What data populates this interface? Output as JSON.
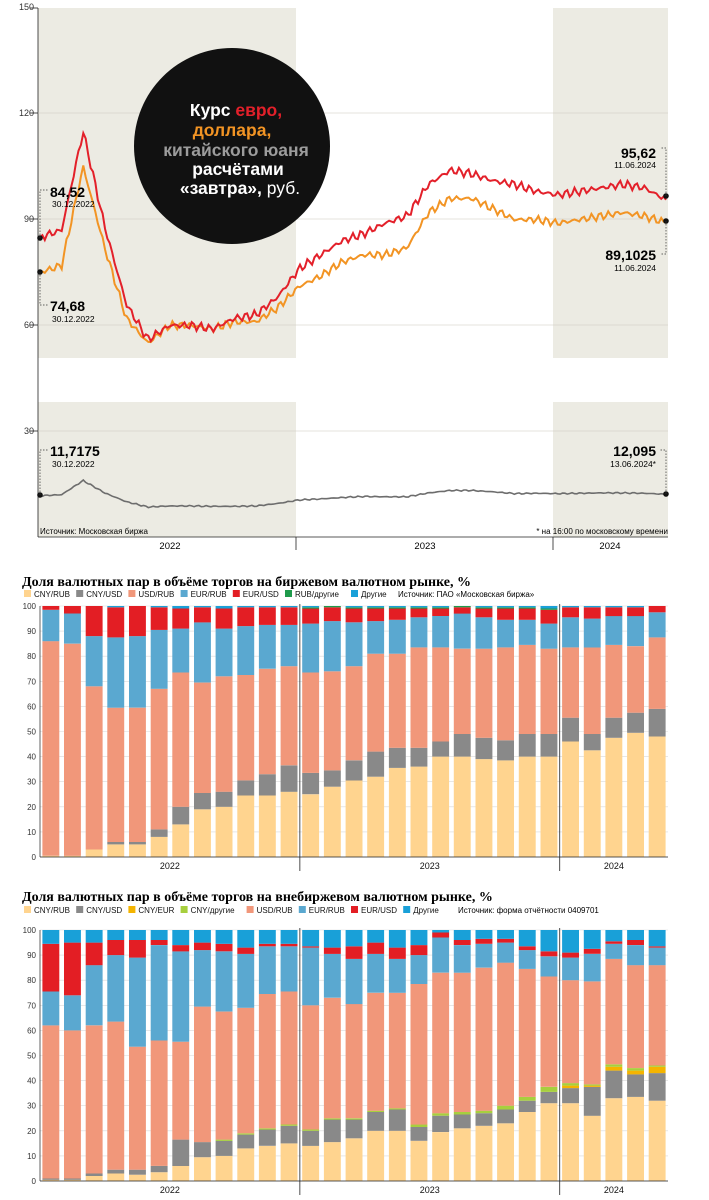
{
  "rate_chart": {
    "title": {
      "w1": "Курс ",
      "w2": "евро,",
      "w3": "доллара,",
      "w4": "китайского юаня",
      "w5": "расчётами",
      "w6": "«завтра»,",
      "w7": " руб."
    },
    "source": "Источник: Московская биржа",
    "footnote": "* на 16:00 по московскому времени",
    "years": [
      "2022",
      "2023",
      "2024"
    ],
    "annotations": {
      "eur_start_value": "84,52",
      "eur_start_date": "30.12.2022",
      "usd_start_value": "74,68",
      "usd_start_date": "30.12.2022",
      "eur_end_value": "95,62",
      "eur_end_date": "11.06.2024",
      "usd_end_value": "89,1025",
      "usd_end_date": "11.06.2024",
      "cny_start_value": "11,7175",
      "cny_start_date": "30.12.2022",
      "cny_end_value": "12,095",
      "cny_end_date": "13.06.2024*"
    },
    "colors": {
      "eur": "#e3202a",
      "usd": "#f29424",
      "cny": "#6d6d6d",
      "shade": "#ecebe3"
    }
  },
  "chart_data": [
    {
      "type": "line",
      "title": "Курс евро, доллара, китайского юаня расчётами «завтра», руб.",
      "ylim": [
        0,
        150
      ],
      "yticks": [
        "30",
        "60",
        "90",
        "120",
        "150"
      ],
      "x_range": [
        "2022-01",
        "2024-06"
      ],
      "x": [
        "2022-01",
        "2022-02",
        "2022-03",
        "2022-04",
        "2022-05",
        "2022-06",
        "2022-07",
        "2022-08",
        "2022-09",
        "2022-10",
        "2022-11",
        "2022-12",
        "2023-01",
        "2023-02",
        "2023-03",
        "2023-04",
        "2023-05",
        "2023-06",
        "2023-07",
        "2023-08",
        "2023-09",
        "2023-10",
        "2023-11",
        "2023-12",
        "2024-01",
        "2024-02",
        "2024-03",
        "2024-04",
        "2024-05",
        "2024-06"
      ],
      "series": [
        {
          "name": "евро",
          "values": [
            85,
            87,
            115,
            88,
            66,
            56,
            60,
            60,
            59,
            62,
            63,
            68,
            76,
            80,
            84,
            86,
            89,
            91,
            100,
            104,
            103,
            101,
            100,
            98,
            97,
            98,
            99,
            100,
            99,
            95.62
          ]
        },
        {
          "name": "доллар",
          "values": [
            75,
            77,
            105,
            82,
            62,
            55,
            60,
            60,
            59,
            61,
            61,
            65,
            71,
            74,
            78,
            80,
            80,
            82,
            92,
            96,
            96,
            93,
            90,
            90,
            89,
            90,
            91,
            92,
            91,
            89.1
          ]
        },
        {
          "name": "юань",
          "values": [
            11.7,
            12,
            16,
            12.5,
            10,
            8.5,
            8.8,
            8.8,
            8.7,
            8.7,
            8.8,
            9.5,
            10.5,
            10.8,
            11.2,
            11.5,
            11.4,
            11.4,
            12.5,
            13.2,
            13.2,
            12.8,
            12.3,
            12.4,
            12.3,
            12.4,
            12.5,
            12.5,
            12.4,
            12.1
          ]
        }
      ]
    },
    {
      "type": "bar",
      "title": "Доля валютных пар в объёме торгов на биржевом валютном рынке, %",
      "source": "Источник: ПАО «Московская биржа»",
      "ylim": [
        0,
        100
      ],
      "yticks": [
        "0",
        "10",
        "20",
        "30",
        "40",
        "50",
        "60",
        "70",
        "80",
        "90",
        "100"
      ],
      "years": [
        "2022",
        "2023",
        "2024"
      ],
      "categories": [
        "2022-01",
        "2022-02",
        "2022-03",
        "2022-04",
        "2022-05",
        "2022-06",
        "2022-07",
        "2022-08",
        "2022-09",
        "2022-10",
        "2022-11",
        "2022-12",
        "2023-01",
        "2023-02",
        "2023-03",
        "2023-04",
        "2023-05",
        "2023-06",
        "2023-07",
        "2023-08",
        "2023-09",
        "2023-10",
        "2023-11",
        "2023-12",
        "2024-01",
        "2024-02",
        "2024-03",
        "2024-04",
        "2024-05"
      ],
      "series": [
        {
          "name": "CNY/RUB",
          "color": "#ffd48f",
          "values": [
            0.5,
            0.5,
            3,
            5,
            5,
            8,
            13,
            19,
            20,
            24.5,
            24.5,
            26,
            25,
            28,
            30.5,
            32,
            35.5,
            36,
            40,
            40,
            39,
            38.5,
            40,
            40,
            46,
            42.5,
            47.5,
            49.5,
            48
          ]
        },
        {
          "name": "CNY/USD",
          "color": "#898989",
          "values": [
            0,
            0,
            0,
            1,
            1,
            3,
            7,
            6.5,
            6,
            6,
            8.5,
            10.5,
            8.5,
            6.5,
            8,
            10,
            8,
            7.5,
            6,
            9,
            8.5,
            8,
            9,
            9,
            9.5,
            6.5,
            8,
            8,
            11
          ]
        },
        {
          "name": "USD/RUB",
          "color": "#f1977a",
          "values": [
            85.5,
            84.5,
            65,
            53.5,
            53.5,
            56,
            53.5,
            44,
            46,
            42,
            42,
            39.5,
            40,
            39.5,
            37.5,
            39,
            37.5,
            40,
            37.5,
            34,
            35.5,
            37,
            35.5,
            34,
            28,
            34.5,
            29,
            26.5,
            28.5
          ]
        },
        {
          "name": "EUR/RUB",
          "color": "#5aa8d0",
          "values": [
            12.5,
            12,
            20,
            28,
            28.5,
            23.5,
            17.5,
            24,
            19,
            19.5,
            17.5,
            16.5,
            19.5,
            20,
            17.5,
            13,
            13.5,
            12,
            12.5,
            14,
            12.5,
            11,
            10,
            10,
            12,
            11.5,
            11.5,
            12,
            10
          ]
        },
        {
          "name": "EUR/USD",
          "color": "#e31e24",
          "values": [
            1.5,
            3,
            12,
            12,
            12,
            9,
            8,
            6,
            8,
            7.5,
            7,
            7,
            6,
            5.5,
            5.5,
            5,
            4.5,
            3.5,
            3,
            2.5,
            3.5,
            4.5,
            4.5,
            5.5,
            4,
            4.5,
            3.5,
            3.5,
            2.5
          ]
        },
        {
          "name": "RUB/другие",
          "color": "#1e9a4b",
          "values": [
            0,
            0,
            0,
            0,
            0,
            0,
            0,
            0,
            0,
            0,
            0,
            0,
            0.5,
            0.5,
            0.5,
            0.5,
            0.5,
            0.5,
            0.5,
            0.5,
            0.5,
            0.5,
            0.5,
            0.5,
            0,
            0,
            0,
            0,
            0
          ]
        },
        {
          "name": "Другие",
          "color": "#19a0d8",
          "values": [
            0,
            0,
            0,
            0.5,
            0,
            0.5,
            1,
            0.5,
            1,
            0.5,
            0.5,
            0.5,
            0.5,
            0,
            0.5,
            0.5,
            0.5,
            0.5,
            0.5,
            0,
            0.5,
            0.5,
            0.5,
            1,
            0.5,
            0.5,
            0.5,
            0.5,
            0
          ]
        }
      ]
    },
    {
      "type": "bar",
      "title": "Доля валютных пар в объёме торгов на внебиржевом валютном рынке, %",
      "source": "Источник: форма отчётности 0409701",
      "ylim": [
        0,
        100
      ],
      "yticks": [
        "0",
        "10",
        "20",
        "30",
        "40",
        "50",
        "60",
        "70",
        "80",
        "90",
        "100"
      ],
      "years": [
        "2022",
        "2023",
        "2024"
      ],
      "categories": [
        "2022-01",
        "2022-02",
        "2022-03",
        "2022-04",
        "2022-05",
        "2022-06",
        "2022-07",
        "2022-08",
        "2022-09",
        "2022-10",
        "2022-11",
        "2022-12",
        "2023-01",
        "2023-02",
        "2023-03",
        "2023-04",
        "2023-05",
        "2023-06",
        "2023-07",
        "2023-08",
        "2023-09",
        "2023-10",
        "2023-11",
        "2023-12",
        "2024-01",
        "2024-02",
        "2024-03",
        "2024-04",
        "2024-05"
      ],
      "series": [
        {
          "name": "CNY/RUB",
          "color": "#ffd48f",
          "values": [
            0.5,
            0.5,
            2,
            3,
            2.5,
            3.5,
            6,
            9.5,
            10,
            13,
            14,
            15,
            14,
            15.5,
            17,
            20,
            20,
            16,
            19.5,
            21,
            22,
            23,
            27.5,
            31,
            31,
            26,
            33,
            33.5,
            32
          ]
        },
        {
          "name": "CNY/USD",
          "color": "#898989",
          "values": [
            0.5,
            0.5,
            1,
            1.5,
            2,
            2.5,
            10.5,
            6,
            6,
            5.5,
            6.5,
            7,
            6,
            9,
            7.5,
            7.5,
            8.5,
            5.5,
            6.5,
            5.5,
            5,
            5.5,
            4.5,
            4.5,
            6,
            11.5,
            11,
            9,
            11
          ]
        },
        {
          "name": "CNY/EUR",
          "color": "#f4b400",
          "values": [
            0,
            0,
            0,
            0,
            0,
            0,
            0,
            0,
            0,
            0,
            0,
            0,
            0,
            0,
            0,
            0,
            0,
            0,
            0,
            0,
            0,
            0,
            0,
            0,
            1,
            0.5,
            1.5,
            1.5,
            2.5
          ]
        },
        {
          "name": "CNY/другие",
          "color": "#a7cf3e",
          "values": [
            0,
            0,
            0,
            0,
            0,
            0,
            0,
            0,
            0.5,
            0.5,
            0.5,
            0.5,
            0.5,
            0.5,
            0.5,
            0.5,
            0.5,
            1,
            1,
            1,
            1,
            1.5,
            1.5,
            2,
            1,
            0.5,
            1,
            1,
            0.5
          ]
        },
        {
          "name": "USD/RUB",
          "color": "#f1977a",
          "values": [
            61,
            59,
            59,
            59,
            49,
            50,
            39,
            54,
            51,
            50,
            53.5,
            53,
            49.5,
            48,
            45.5,
            47,
            46,
            56,
            56,
            55.5,
            57,
            57,
            51,
            44,
            41,
            41,
            42,
            41,
            40
          ]
        },
        {
          "name": "EUR/RUB",
          "color": "#5aa8d0",
          "values": [
            13.5,
            14,
            24,
            26.5,
            35.5,
            38,
            36,
            22.5,
            24,
            21.5,
            19,
            18,
            23,
            17.5,
            18,
            15.5,
            13.5,
            11.5,
            14,
            11,
            9.5,
            8,
            7.5,
            8,
            9,
            11,
            6,
            8,
            7
          ]
        },
        {
          "name": "EUR/USD",
          "color": "#e31e24",
          "values": [
            19,
            21,
            9,
            6,
            7,
            2,
            2.5,
            3,
            3,
            2.5,
            1,
            1,
            0.5,
            2.5,
            5,
            4.5,
            4.5,
            4,
            2,
            2,
            2,
            1.5,
            1.5,
            2,
            2,
            2,
            1,
            2,
            0.5
          ]
        },
        {
          "name": "Другие",
          "color": "#19a0d8",
          "values": [
            5.5,
            5,
            5,
            4,
            4,
            4,
            6,
            5,
            5.5,
            7,
            5.5,
            5.5,
            6.5,
            7,
            6.5,
            5,
            7,
            6,
            1,
            4,
            3.5,
            3.5,
            6.5,
            8.5,
            9,
            7.5,
            4.5,
            4,
            6.5
          ]
        }
      ]
    }
  ]
}
